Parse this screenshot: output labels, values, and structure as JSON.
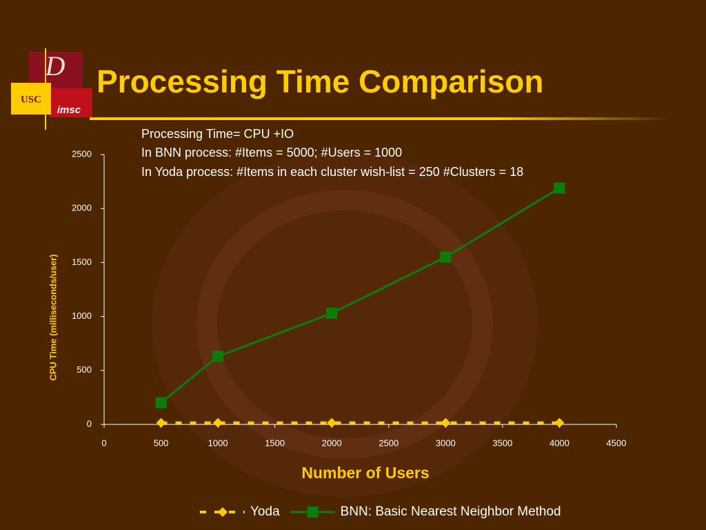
{
  "logo": {
    "letter": "D",
    "school": "USC",
    "lab": "imsc"
  },
  "chart_data": {
    "type": "line",
    "title": "Processing Time Comparison",
    "annotations": [
      "Processing Time= CPU +IO",
      "In BNN process: #Items = 5000; #Users = 1000",
      "In Yoda process: #Items in each cluster wish-list = 250 #Clusters = 18"
    ],
    "x_label": "Number of Users",
    "y_label": "CPU Time (milliseconds/user)",
    "x": [
      500,
      1000,
      2000,
      3000,
      4000
    ],
    "series": [
      {
        "name": "Yoda",
        "color": "#ffcc00",
        "style": "dashed",
        "marker": "diamond",
        "values": [
          15,
          15,
          15,
          15,
          15
        ]
      },
      {
        "name": "BNN: Basic Nearest Neighbor Method",
        "color": "#0a7d0a",
        "style": "solid",
        "marker": "square",
        "values": [
          200,
          630,
          1030,
          1550,
          2190
        ]
      }
    ],
    "xlim": [
      0,
      4500
    ],
    "xticks": [
      0,
      500,
      1000,
      1500,
      2000,
      2500,
      3000,
      3500,
      4000,
      4500
    ],
    "ylim": [
      0,
      2500
    ],
    "yticks": [
      0,
      500,
      1000,
      1500,
      2000,
      2500
    ],
    "legend": "bottom"
  }
}
